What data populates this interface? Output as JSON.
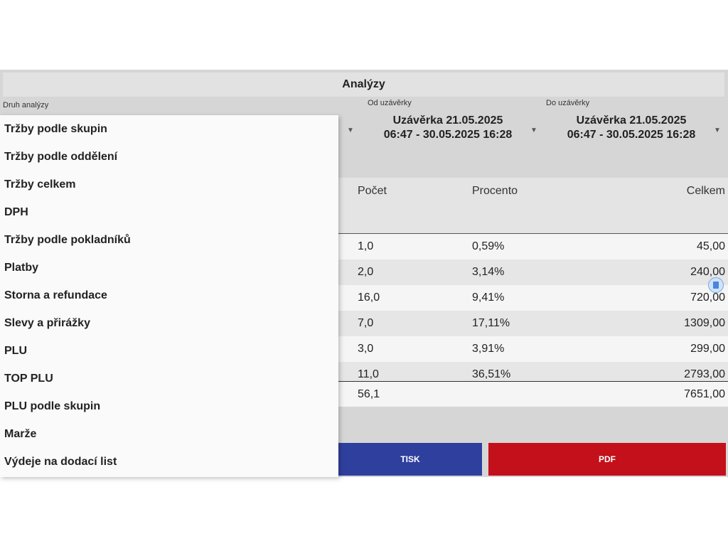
{
  "title": "Analýzy",
  "labels": {
    "analysis_type": "Druh analýzy",
    "from_closure": "Od uzávěrky",
    "to_closure": "Do uzávěrky"
  },
  "from_select": {
    "line1": "Uzávěrka 21.05.2025",
    "line2": "06:47 - 30.05.2025 16:28"
  },
  "to_select": {
    "line1": "Uzávěrka 21.05.2025",
    "line2": "06:47 - 30.05.2025 16:28"
  },
  "table": {
    "headers": {
      "count": "Počet",
      "percent": "Procento",
      "total": "Celkem"
    },
    "rows": [
      {
        "count": "1,0",
        "percent": "0,59%",
        "total": "45,00"
      },
      {
        "count": "2,0",
        "percent": "3,14%",
        "total": "240,00"
      },
      {
        "count": "16,0",
        "percent": "9,41%",
        "total": "720,00"
      },
      {
        "count": "7,0",
        "percent": "17,11%",
        "total": "1309,00"
      },
      {
        "count": "3,0",
        "percent": "3,91%",
        "total": "299,00"
      },
      {
        "count": "11,0",
        "percent": "36,51%",
        "total": "2793,00"
      }
    ],
    "totals": {
      "count": "56,1",
      "total": "7651,00"
    }
  },
  "buttons": {
    "print": "TISK",
    "pdf": "PDF"
  },
  "dropdown_items": [
    "Tržby podle skupin",
    "Tržby podle oddělení",
    "Tržby celkem",
    "DPH",
    "Tržby podle pokladníků",
    "Platby",
    "Storna a refundace",
    "Slevy a přirážky",
    "PLU",
    "TOP PLU",
    "PLU podle skupin",
    "Marže",
    "Výdeje na dodací list"
  ],
  "colors": {
    "print_button": "#2f3f9e",
    "pdf_button": "#c4101b"
  },
  "icons": {
    "caret": "caret-down-icon",
    "scroll": "scroll-handle-icon"
  }
}
